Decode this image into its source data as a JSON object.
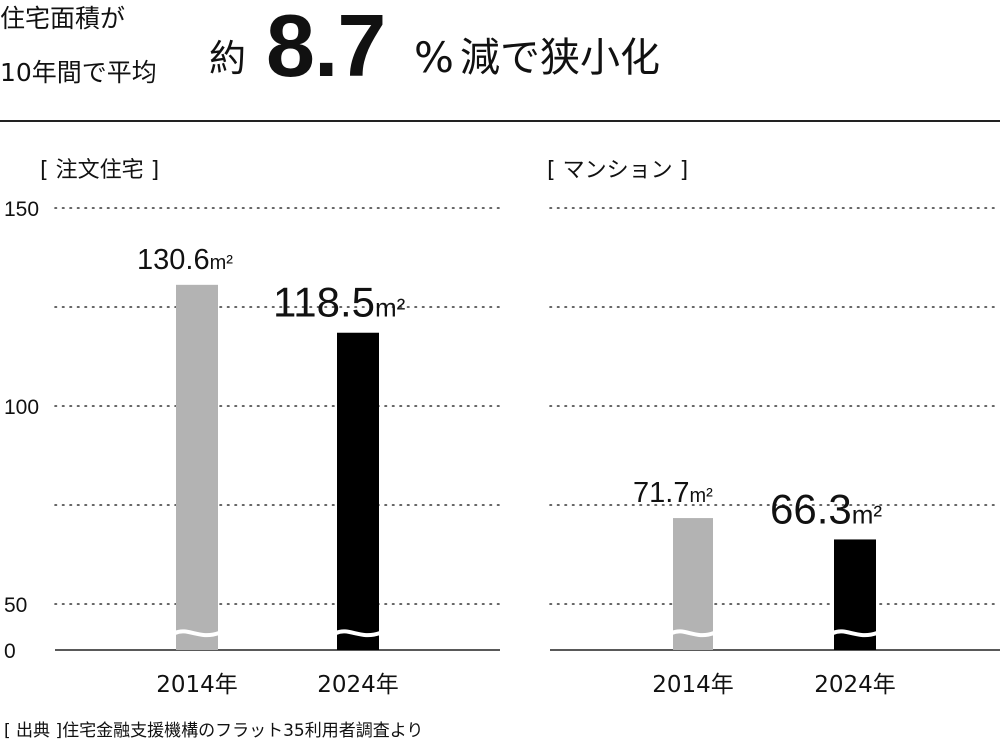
{
  "headline": {
    "line1": "住宅面積が",
    "line2": "10年間で平均",
    "approx": "約",
    "number": "8.7",
    "percent": "%",
    "tail": "減で狭小化"
  },
  "source": "[ 出典 ]住宅金融支援機構のフラット35利用者調査より",
  "colors": {
    "bar_2014": "#b3b3b3",
    "bar_2024": "#000000",
    "text": "#111111",
    "grid": "#333333"
  },
  "chart_data": [
    {
      "type": "bar",
      "title": "[ 注文住宅 ]",
      "categories": [
        "2014年",
        "2024年"
      ],
      "values": [
        130.6,
        118.5
      ],
      "value_labels": [
        "130.6",
        "118.5"
      ],
      "unit": "m²",
      "ytick_labels": [
        "150",
        "100",
        "50",
        "0"
      ],
      "ylim": [
        0,
        150
      ],
      "axis_break": true,
      "grid": true
    },
    {
      "type": "bar",
      "title": "[ マンション ]",
      "categories": [
        "2014年",
        "2024年"
      ],
      "values": [
        71.7,
        66.3
      ],
      "value_labels": [
        "71.7",
        "66.3"
      ],
      "unit": "m²",
      "ylim": [
        0,
        150
      ],
      "axis_break": true,
      "grid": true
    }
  ]
}
